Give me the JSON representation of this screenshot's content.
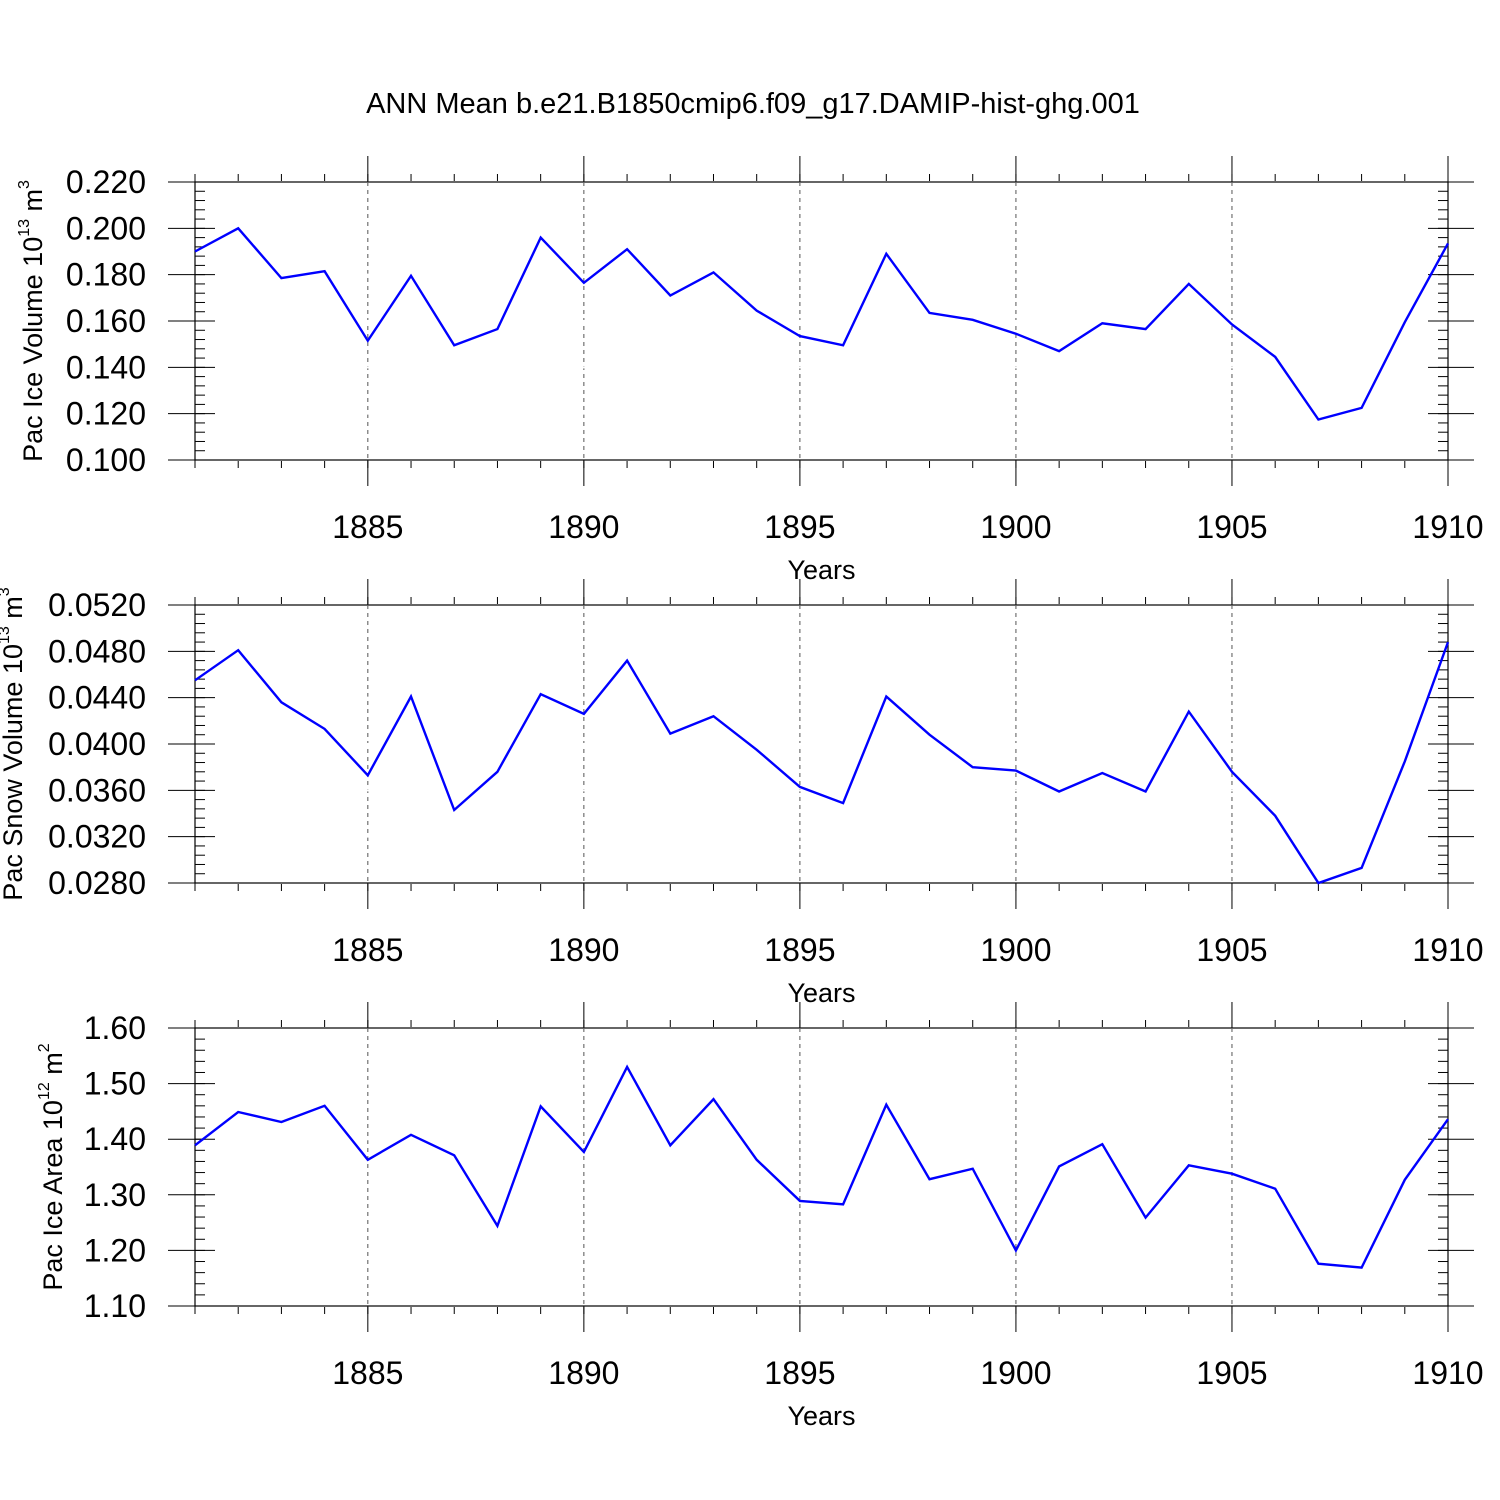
{
  "title": "ANN Mean b.e21.B1850cmip6.f09_g17.DAMIP-hist-ghg.001",
  "chart_data": [
    {
      "type": "line",
      "ylabel": {
        "prefix": "Pac Ice Volume 10",
        "exponent": "13",
        "unit": "m",
        "unit_exponent": "3"
      },
      "xlabel": "Years",
      "xlim": [
        1881,
        1910
      ],
      "ylim": [
        0.1,
        0.22
      ],
      "yticks": [
        "0.100",
        "0.120",
        "0.140",
        "0.160",
        "0.180",
        "0.200",
        "0.220"
      ],
      "xticks": [
        "1885",
        "1890",
        "1895",
        "1900",
        "1905",
        "1910"
      ],
      "x": [
        1881,
        1882,
        1883,
        1884,
        1885,
        1886,
        1887,
        1888,
        1889,
        1890,
        1891,
        1892,
        1893,
        1894,
        1895,
        1896,
        1897,
        1898,
        1899,
        1900,
        1901,
        1902,
        1903,
        1904,
        1905,
        1906,
        1907,
        1908,
        1909,
        1910
      ],
      "values": [
        0.19,
        0.2,
        0.1785,
        0.1815,
        0.1515,
        0.1795,
        0.1495,
        0.1565,
        0.196,
        0.1765,
        0.191,
        0.171,
        0.181,
        0.1645,
        0.1535,
        0.1495,
        0.189,
        0.1635,
        0.1605,
        0.1545,
        0.147,
        0.159,
        0.1565,
        0.176,
        0.1585,
        0.1445,
        0.1175,
        0.1225,
        0.1595,
        0.1935
      ],
      "line_color": "#0000ff"
    },
    {
      "type": "line",
      "ylabel": {
        "prefix": "Pac Snow Volume 10",
        "exponent": "13",
        "unit": "m",
        "unit_exponent": "3"
      },
      "xlabel": "Years",
      "xlim": [
        1881,
        1910
      ],
      "ylim": [
        0.028,
        0.052
      ],
      "yticks": [
        "0.0280",
        "0.0320",
        "0.0360",
        "0.0400",
        "0.0440",
        "0.0480",
        "0.0520"
      ],
      "xticks": [
        "1885",
        "1890",
        "1895",
        "1900",
        "1905",
        "1910"
      ],
      "x": [
        1881,
        1882,
        1883,
        1884,
        1885,
        1886,
        1887,
        1888,
        1889,
        1890,
        1891,
        1892,
        1893,
        1894,
        1895,
        1896,
        1897,
        1898,
        1899,
        1900,
        1901,
        1902,
        1903,
        1904,
        1905,
        1906,
        1907,
        1908,
        1909,
        1910
      ],
      "values": [
        0.0455,
        0.0481,
        0.0436,
        0.0413,
        0.0373,
        0.0441,
        0.0343,
        0.0376,
        0.0443,
        0.0426,
        0.0472,
        0.0409,
        0.0424,
        0.0395,
        0.0363,
        0.0349,
        0.0441,
        0.0408,
        0.038,
        0.0377,
        0.0359,
        0.0375,
        0.0359,
        0.0428,
        0.0376,
        0.0338,
        0.028,
        0.0293,
        0.0385,
        0.0488
      ],
      "line_color": "#0000ff"
    },
    {
      "type": "line",
      "ylabel": {
        "prefix": "Pac Ice Area 10",
        "exponent": "12",
        "unit": "m",
        "unit_exponent": "2"
      },
      "xlabel": "Years",
      "xlim": [
        1881,
        1910
      ],
      "ylim": [
        1.1,
        1.6
      ],
      "yticks": [
        "1.10",
        "1.20",
        "1.30",
        "1.40",
        "1.50",
        "1.60"
      ],
      "xticks": [
        "1885",
        "1890",
        "1895",
        "1900",
        "1905",
        "1910"
      ],
      "x": [
        1881,
        1882,
        1883,
        1884,
        1885,
        1886,
        1887,
        1888,
        1889,
        1890,
        1891,
        1892,
        1893,
        1894,
        1895,
        1896,
        1897,
        1898,
        1899,
        1900,
        1901,
        1902,
        1903,
        1904,
        1905,
        1906,
        1907,
        1908,
        1909,
        1910
      ],
      "values": [
        1.389,
        1.449,
        1.431,
        1.46,
        1.363,
        1.408,
        1.371,
        1.244,
        1.459,
        1.377,
        1.53,
        1.389,
        1.472,
        1.363,
        1.289,
        1.283,
        1.462,
        1.328,
        1.347,
        1.2,
        1.351,
        1.391,
        1.259,
        1.353,
        1.338,
        1.311,
        1.176,
        1.169,
        1.327,
        1.436
      ],
      "line_color": "#0000ff"
    }
  ]
}
